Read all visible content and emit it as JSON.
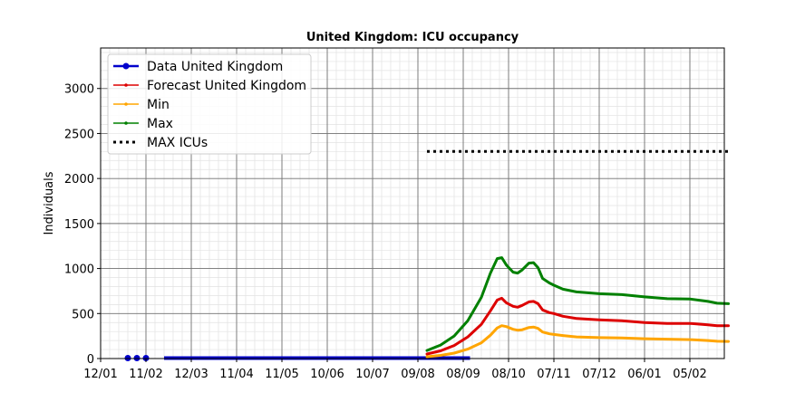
{
  "chart_data": {
    "type": "line",
    "title": "United Kingdom: ICU occupancy",
    "xlabel": "",
    "ylabel": "Individuals",
    "ylim": [
      0,
      3450
    ],
    "y_ticks": [
      0,
      500,
      1000,
      1500,
      2000,
      2500,
      3000
    ],
    "x_tick_labels": [
      "12/01",
      "11/02",
      "12/03",
      "11/04",
      "11/05",
      "10/06",
      "10/07",
      "09/08",
      "08/09",
      "08/10",
      "07/11",
      "07/12",
      "06/01",
      "05/02"
    ],
    "grid": true,
    "minor_grid": true,
    "legend_position": "upper-left",
    "series": [
      {
        "name": "Data United Kingdom",
        "color": "#0000cc",
        "style": "solid-dots",
        "points": [
          [
            0.6,
            5
          ],
          [
            0.8,
            5
          ],
          [
            1.0,
            5
          ],
          [
            1.4,
            5
          ],
          [
            1.5,
            5
          ],
          [
            2.0,
            5
          ],
          [
            3.0,
            5
          ],
          [
            4.0,
            5
          ],
          [
            5.0,
            5
          ],
          [
            6.0,
            5
          ],
          [
            7.0,
            5
          ],
          [
            8.0,
            5
          ],
          [
            8.15,
            5
          ]
        ]
      },
      {
        "name": "Forecast United Kingdom",
        "color": "#dd0000",
        "style": "solid",
        "points": [
          [
            7.2,
            50
          ],
          [
            7.5,
            85
          ],
          [
            7.8,
            145
          ],
          [
            8.1,
            240
          ],
          [
            8.4,
            380
          ],
          [
            8.6,
            530
          ],
          [
            8.75,
            650
          ],
          [
            8.85,
            670
          ],
          [
            8.95,
            620
          ],
          [
            9.1,
            580
          ],
          [
            9.2,
            570
          ],
          [
            9.3,
            590
          ],
          [
            9.45,
            630
          ],
          [
            9.55,
            635
          ],
          [
            9.65,
            610
          ],
          [
            9.75,
            540
          ],
          [
            9.9,
            510
          ],
          [
            10.0,
            500
          ],
          [
            10.2,
            470
          ],
          [
            10.5,
            445
          ],
          [
            11.0,
            430
          ],
          [
            11.5,
            420
          ],
          [
            12.0,
            400
          ],
          [
            12.5,
            390
          ],
          [
            13.0,
            390
          ],
          [
            13.4,
            375
          ],
          [
            13.6,
            365
          ],
          [
            13.85,
            365
          ]
        ]
      },
      {
        "name": "Min",
        "color": "#ffa500",
        "style": "solid",
        "points": [
          [
            7.2,
            20
          ],
          [
            7.5,
            35
          ],
          [
            7.8,
            60
          ],
          [
            8.1,
            105
          ],
          [
            8.4,
            175
          ],
          [
            8.6,
            260
          ],
          [
            8.75,
            340
          ],
          [
            8.85,
            365
          ],
          [
            8.95,
            355
          ],
          [
            9.1,
            325
          ],
          [
            9.2,
            315
          ],
          [
            9.3,
            320
          ],
          [
            9.45,
            345
          ],
          [
            9.55,
            350
          ],
          [
            9.65,
            335
          ],
          [
            9.75,
            295
          ],
          [
            9.9,
            275
          ],
          [
            10.0,
            268
          ],
          [
            10.2,
            255
          ],
          [
            10.5,
            240
          ],
          [
            11.0,
            232
          ],
          [
            11.5,
            228
          ],
          [
            12.0,
            220
          ],
          [
            12.5,
            215
          ],
          [
            13.0,
            210
          ],
          [
            13.4,
            200
          ],
          [
            13.6,
            192
          ],
          [
            13.85,
            190
          ]
        ]
      },
      {
        "name": "Max",
        "color": "#008000",
        "style": "solid",
        "points": [
          [
            7.2,
            90
          ],
          [
            7.5,
            150
          ],
          [
            7.8,
            250
          ],
          [
            8.1,
            420
          ],
          [
            8.4,
            680
          ],
          [
            8.6,
            950
          ],
          [
            8.75,
            1110
          ],
          [
            8.85,
            1120
          ],
          [
            8.95,
            1040
          ],
          [
            9.1,
            960
          ],
          [
            9.2,
            950
          ],
          [
            9.3,
            985
          ],
          [
            9.45,
            1060
          ],
          [
            9.55,
            1065
          ],
          [
            9.65,
            1010
          ],
          [
            9.75,
            890
          ],
          [
            9.9,
            840
          ],
          [
            10.0,
            815
          ],
          [
            10.2,
            770
          ],
          [
            10.5,
            740
          ],
          [
            11.0,
            720
          ],
          [
            11.5,
            710
          ],
          [
            12.0,
            685
          ],
          [
            12.5,
            665
          ],
          [
            13.0,
            662
          ],
          [
            13.4,
            635
          ],
          [
            13.6,
            615
          ],
          [
            13.85,
            610
          ]
        ]
      },
      {
        "name": "MAX ICUs",
        "color": "#000000",
        "style": "dotted",
        "points": [
          [
            7.2,
            2300
          ],
          [
            13.85,
            2300
          ]
        ]
      }
    ]
  }
}
